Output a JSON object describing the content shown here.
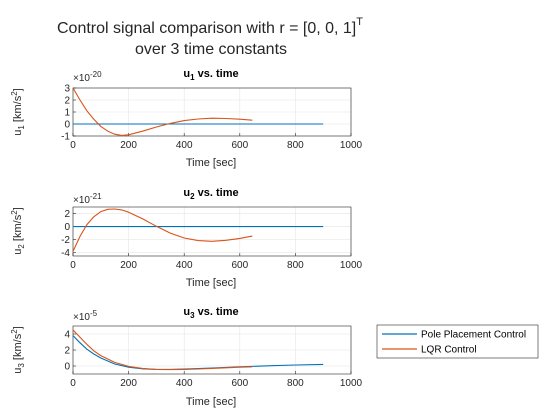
{
  "figure": {
    "title_line1": "Control signal comparison with r = [0, 0, 1]",
    "title_sup": "T",
    "title_line2": "over 3 time constants"
  },
  "colors": {
    "pole_placement": "#0072BD",
    "lqr": "#D95319",
    "grid": "#e6e6e6",
    "axis": "#262626"
  },
  "legend": {
    "location": "right of bottom subplot",
    "entries": [
      "Pole Placement Control",
      "LQR Control"
    ]
  },
  "chart_data": [
    {
      "type": "line",
      "title_main": "u",
      "title_sub": "1",
      "title_rest": " vs. time",
      "xlabel": "Time [sec]",
      "ylabel_main": "u",
      "ylabel_sub": "1",
      "ylabel_unit": " [km/s",
      "ylabel_pow": "2",
      "ylabel_close": "]",
      "exponent_label": "×10",
      "exponent_power": "-20",
      "xlim": [
        0,
        1000
      ],
      "ylim": [
        -1,
        3
      ],
      "xticks": [
        0,
        200,
        400,
        600,
        800,
        1000
      ],
      "xtick_labels": [
        "0",
        "200",
        "400",
        "600",
        "800",
        "1000"
      ],
      "yticks": [
        3,
        2,
        1,
        0,
        -1
      ],
      "ytick_labels": [
        "3",
        "2",
        "1",
        "0",
        "-1"
      ],
      "grid": true,
      "series": [
        {
          "name": "Pole Placement Control",
          "x": [
            0,
            900
          ],
          "y": [
            0,
            0
          ]
        },
        {
          "name": "LQR Control",
          "x": [
            0,
            25,
            50,
            75,
            100,
            125,
            150,
            175,
            200,
            250,
            300,
            350,
            400,
            450,
            500,
            550,
            600,
            645
          ],
          "y": [
            3.0,
            2.0,
            1.1,
            0.4,
            -0.2,
            -0.6,
            -0.85,
            -0.95,
            -0.9,
            -0.6,
            -0.25,
            0.05,
            0.28,
            0.42,
            0.48,
            0.46,
            0.4,
            0.32
          ]
        }
      ]
    },
    {
      "type": "line",
      "title_main": "u",
      "title_sub": "2",
      "title_rest": " vs. time",
      "xlabel": "Time [sec]",
      "ylabel_main": "u",
      "ylabel_sub": "2",
      "ylabel_unit": " [km/s",
      "ylabel_pow": "2",
      "ylabel_close": "]",
      "exponent_label": "×10",
      "exponent_power": "-21",
      "xlim": [
        0,
        1000
      ],
      "ylim": [
        -4.5,
        3
      ],
      "xticks": [
        0,
        200,
        400,
        600,
        800,
        1000
      ],
      "xtick_labels": [
        "0",
        "200",
        "400",
        "600",
        "800",
        "1000"
      ],
      "yticks": [
        2,
        0,
        -2,
        -4
      ],
      "ytick_labels": [
        "2",
        "0",
        "-2",
        "-4"
      ],
      "grid": true,
      "series": [
        {
          "name": "Pole Placement Control",
          "x": [
            0,
            900
          ],
          "y": [
            0,
            0
          ]
        },
        {
          "name": "LQR Control",
          "x": [
            0,
            25,
            50,
            75,
            100,
            125,
            150,
            175,
            200,
            250,
            300,
            350,
            400,
            450,
            500,
            550,
            600,
            645
          ],
          "y": [
            -3.8,
            -1.5,
            0.3,
            1.5,
            2.3,
            2.65,
            2.7,
            2.55,
            2.2,
            1.2,
            0.05,
            -1.0,
            -1.75,
            -2.15,
            -2.25,
            -2.1,
            -1.8,
            -1.45
          ]
        }
      ]
    },
    {
      "type": "line",
      "title_main": "u",
      "title_sub": "3",
      "title_rest": " vs. time",
      "xlabel": "Time [sec]",
      "ylabel_main": "u",
      "ylabel_sub": "3",
      "ylabel_unit": " [km/s",
      "ylabel_pow": "2",
      "ylabel_close": "]",
      "exponent_label": "×10",
      "exponent_power": "-5",
      "xlim": [
        0,
        1000
      ],
      "ylim": [
        -1,
        5
      ],
      "xticks": [
        0,
        200,
        400,
        600,
        800,
        1000
      ],
      "xtick_labels": [
        "0",
        "200",
        "400",
        "600",
        "800",
        "1000"
      ],
      "yticks": [
        4,
        2,
        0
      ],
      "ytick_labels": [
        "4",
        "2",
        "0"
      ],
      "grid": true,
      "series": [
        {
          "name": "Pole Placement Control",
          "x": [
            0,
            25,
            50,
            75,
            100,
            150,
            200,
            250,
            300,
            350,
            400,
            500,
            600,
            700,
            800,
            900
          ],
          "y": [
            3.8,
            2.9,
            2.1,
            1.5,
            1.0,
            0.25,
            -0.15,
            -0.35,
            -0.42,
            -0.42,
            -0.38,
            -0.25,
            -0.1,
            0.02,
            0.12,
            0.2
          ]
        },
        {
          "name": "LQR Control",
          "x": [
            0,
            25,
            50,
            75,
            100,
            150,
            200,
            250,
            300,
            350,
            400,
            450,
            500,
            550,
            600,
            645
          ],
          "y": [
            4.5,
            3.6,
            2.7,
            1.9,
            1.3,
            0.45,
            -0.05,
            -0.3,
            -0.42,
            -0.45,
            -0.42,
            -0.37,
            -0.3,
            -0.22,
            -0.15,
            -0.1
          ]
        }
      ]
    }
  ]
}
